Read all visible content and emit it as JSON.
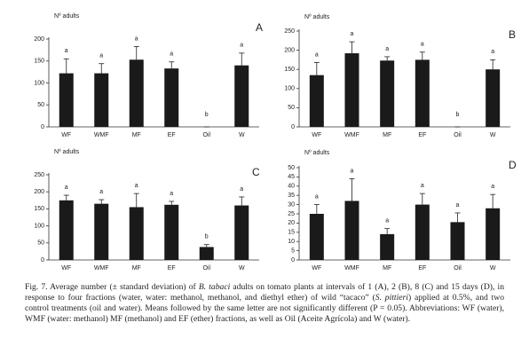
{
  "chart_data": [
    {
      "type": "bar",
      "title": "Nº adults",
      "panel": "A",
      "categories": [
        "WF",
        "WMF",
        "MF",
        "EF",
        "Oil",
        "W"
      ],
      "values": [
        122,
        122,
        153,
        133,
        0,
        140
      ],
      "errors": [
        33,
        22,
        30,
        15,
        0,
        28
      ],
      "letters": [
        "a",
        "a",
        "a",
        "a",
        "b",
        "a"
      ],
      "color": "#1a1a1a",
      "ylim": [
        0,
        200
      ],
      "yticks": [
        0,
        50,
        100,
        150,
        200
      ]
    },
    {
      "type": "bar",
      "title": "Nº adults",
      "panel": "B",
      "categories": [
        "WF",
        "WMF",
        "MF",
        "EF",
        "Oil",
        "W"
      ],
      "values": [
        135,
        192,
        173,
        175,
        0,
        150
      ],
      "errors": [
        33,
        30,
        10,
        20,
        0,
        25
      ],
      "letters": [
        "a",
        "a",
        "a",
        "a",
        "b",
        "a"
      ],
      "color": "#1a1a1a",
      "ylim": [
        0,
        250
      ],
      "yticks": [
        0,
        50,
        100,
        150,
        200,
        250
      ]
    },
    {
      "type": "bar",
      "title": "Nº adults",
      "panel": "C",
      "categories": [
        "WF",
        "WMF",
        "MF",
        "EF",
        "Oil",
        "W"
      ],
      "values": [
        175,
        165,
        155,
        162,
        38,
        160
      ],
      "errors": [
        15,
        12,
        40,
        10,
        7,
        25
      ],
      "letters": [
        "a",
        "a",
        "a",
        "a",
        "b",
        "a"
      ],
      "color": "#1a1a1a",
      "ylim": [
        0,
        250
      ],
      "yticks": [
        0,
        50,
        100,
        150,
        200,
        250
      ]
    },
    {
      "type": "bar",
      "title": "Nº adults",
      "panel": "D",
      "categories": [
        "WF",
        "WMF",
        "MF",
        "EF",
        "Oil",
        "W"
      ],
      "values": [
        25,
        32,
        14,
        30,
        20.5,
        28
      ],
      "errors": [
        5,
        12,
        3,
        6,
        5,
        7.5
      ],
      "letters": [
        "a",
        "a",
        "a",
        "a",
        "a",
        "a"
      ],
      "color": "#1a1a1a",
      "ylim": [
        0,
        50
      ],
      "yticks": [
        0,
        5,
        10,
        15,
        20,
        25,
        30,
        35,
        40,
        45,
        50
      ]
    }
  ],
  "caption": {
    "parts": [
      {
        "text": "Fig. 7. Average number (± standard deviation) of ",
        "italic": false
      },
      {
        "text": "B. tabaci",
        "italic": true
      },
      {
        "text": " adults on tomato plants at intervals of 1 (A), 2 (B), 8 (C) and 15 days (D), in response to four fractions (water, water: methanol, methanol, and diethyl ether) of wild “tacaco” (",
        "italic": false
      },
      {
        "text": "S. pittieri",
        "italic": true
      },
      {
        "text": ") applied at 0.5%, and two control treatments (oil and water). Means followed by the same letter are not significantly different (P = 0.05). Abbreviations: WF (water), WMF (water: methanol) MF (methanol) and EF (ether) fractions, as well as Oil (Aceite Agrícola) and W (water).",
        "italic": false
      }
    ]
  }
}
